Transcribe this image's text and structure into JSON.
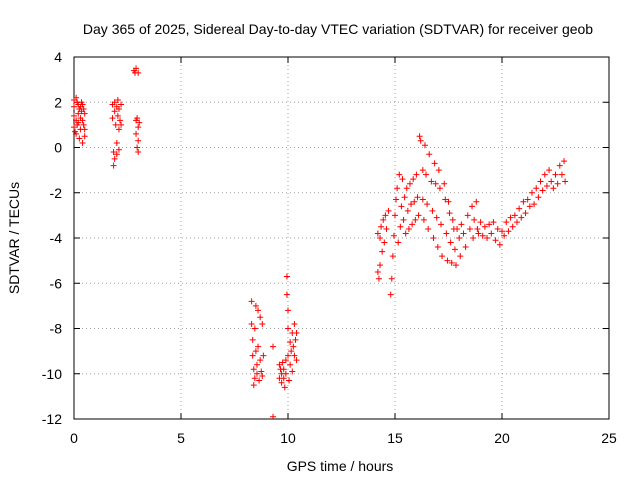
{
  "chart_data": {
    "type": "scatter",
    "title": "Day 365 of 2025, Sidereal Day-to-day VTEC variation (SDTVAR) for receiver geob",
    "xlabel": "GPS time / hours",
    "ylabel": "SDTVAR / TECUs",
    "xlim": [
      0,
      25
    ],
    "ylim": [
      -12,
      4
    ],
    "xticks": [
      "0",
      "5",
      "10",
      "15",
      "20",
      "25"
    ],
    "yticks": [
      "4",
      "2",
      "0",
      "-2",
      "-4",
      "-6",
      "-8",
      "-10",
      "-12"
    ],
    "grid": true,
    "marker": "plus",
    "marker_color": "#ff0000",
    "series": [
      {
        "points": [
          [
            0.0,
            2.1
          ],
          [
            0.0,
            1.8
          ],
          [
            0.0,
            1.4
          ],
          [
            0.0,
            0.9
          ],
          [
            0.05,
            0.7
          ],
          [
            0.1,
            2.2
          ],
          [
            0.1,
            1.2
          ],
          [
            0.1,
            0.6
          ],
          [
            0.15,
            2.0
          ],
          [
            0.15,
            1.0
          ],
          [
            0.2,
            1.9
          ],
          [
            0.2,
            1.5
          ],
          [
            0.2,
            1.1
          ],
          [
            0.25,
            1.7
          ],
          [
            0.25,
            0.4
          ],
          [
            0.3,
            1.8
          ],
          [
            0.3,
            1.3
          ],
          [
            0.3,
            0.8
          ],
          [
            0.35,
            2.0
          ],
          [
            0.35,
            1.6
          ],
          [
            0.4,
            1.9
          ],
          [
            0.4,
            1.2
          ],
          [
            0.4,
            0.2
          ],
          [
            0.45,
            1.7
          ],
          [
            0.45,
            1.0
          ],
          [
            0.5,
            1.5
          ],
          [
            0.5,
            0.8
          ],
          [
            0.5,
            0.5
          ],
          [
            1.8,
            1.9
          ],
          [
            1.8,
            1.3
          ],
          [
            1.85,
            -0.2
          ],
          [
            1.85,
            -0.8
          ],
          [
            1.9,
            2.0
          ],
          [
            1.9,
            1.6
          ],
          [
            1.9,
            -0.5
          ],
          [
            1.95,
            1.0
          ],
          [
            2.0,
            1.8
          ],
          [
            2.0,
            0.2
          ],
          [
            2.0,
            -0.3
          ],
          [
            2.05,
            2.1
          ],
          [
            2.05,
            1.4
          ],
          [
            2.1,
            1.7
          ],
          [
            2.1,
            0.8
          ],
          [
            2.1,
            -0.1
          ],
          [
            2.15,
            1.2
          ],
          [
            2.2,
            1.9
          ],
          [
            2.2,
            1.0
          ],
          [
            2.8,
            3.4
          ],
          [
            2.85,
            3.3
          ],
          [
            2.9,
            3.5
          ],
          [
            2.9,
            1.2
          ],
          [
            2.9,
            0.6
          ],
          [
            2.95,
            0.0
          ],
          [
            2.95,
            1.3
          ],
          [
            3.0,
            3.3
          ],
          [
            3.0,
            0.9
          ],
          [
            3.0,
            0.3
          ],
          [
            3.0,
            -0.2
          ],
          [
            3.05,
            1.1
          ],
          [
            8.3,
            -6.8
          ],
          [
            8.3,
            -7.8
          ],
          [
            8.35,
            -8.5
          ],
          [
            8.35,
            -9.2
          ],
          [
            8.4,
            -9.8
          ],
          [
            8.4,
            -10.5
          ],
          [
            8.45,
            -8.0
          ],
          [
            8.45,
            -10.2
          ],
          [
            8.5,
            -7.0
          ],
          [
            8.5,
            -9.0
          ],
          [
            8.55,
            -9.6
          ],
          [
            8.55,
            -10.0
          ],
          [
            8.6,
            -7.2
          ],
          [
            8.6,
            -8.8
          ],
          [
            8.65,
            -10.3
          ],
          [
            8.7,
            -7.5
          ],
          [
            8.7,
            -9.4
          ],
          [
            8.75,
            -9.9
          ],
          [
            8.8,
            -7.8
          ],
          [
            8.8,
            -10.1
          ],
          [
            8.85,
            -9.2
          ],
          [
            9.3,
            -8.8
          ],
          [
            9.3,
            -11.9
          ],
          [
            9.6,
            -9.6
          ],
          [
            9.6,
            -10.2
          ],
          [
            9.65,
            -9.8
          ],
          [
            9.7,
            -10.0
          ],
          [
            9.7,
            -10.4
          ],
          [
            9.75,
            -9.5
          ],
          [
            9.8,
            -10.2
          ],
          [
            9.8,
            -9.8
          ],
          [
            9.85,
            -10.6
          ],
          [
            9.9,
            -9.4
          ],
          [
            9.9,
            -10.0
          ],
          [
            9.95,
            -5.7
          ],
          [
            9.95,
            -6.5
          ],
          [
            10.0,
            -7.2
          ],
          [
            10.0,
            -8.0
          ],
          [
            10.0,
            -9.2
          ],
          [
            10.05,
            -10.3
          ],
          [
            10.1,
            -8.6
          ],
          [
            10.1,
            -9.6
          ],
          [
            10.15,
            -9.0
          ],
          [
            10.2,
            -8.2
          ],
          [
            10.2,
            -9.9
          ],
          [
            10.25,
            -8.8
          ],
          [
            10.3,
            -9.2
          ],
          [
            10.3,
            -7.8
          ],
          [
            10.35,
            -8.5
          ],
          [
            10.4,
            -8.2
          ],
          [
            10.4,
            -9.4
          ],
          [
            14.2,
            -5.5
          ],
          [
            14.2,
            -3.8
          ],
          [
            14.25,
            -5.8
          ],
          [
            14.3,
            -4.0
          ],
          [
            14.3,
            -5.2
          ],
          [
            14.35,
            -3.5
          ],
          [
            14.4,
            -4.6
          ],
          [
            14.45,
            -3.2
          ],
          [
            14.5,
            -4.2
          ],
          [
            14.55,
            -3.0
          ],
          [
            14.6,
            -3.6
          ],
          [
            14.7,
            -2.8
          ],
          [
            14.8,
            -6.5
          ],
          [
            14.85,
            -5.8
          ],
          [
            14.9,
            -4.8
          ],
          [
            14.95,
            -3.9
          ],
          [
            15.0,
            -3.0
          ],
          [
            15.05,
            -2.3
          ],
          [
            15.1,
            -1.8
          ],
          [
            15.15,
            -4.2
          ],
          [
            15.2,
            -1.2
          ],
          [
            15.25,
            -3.5
          ],
          [
            15.3,
            -2.6
          ],
          [
            15.35,
            -1.4
          ],
          [
            15.4,
            -3.2
          ],
          [
            15.45,
            -2.2
          ],
          [
            15.5,
            -3.8
          ],
          [
            15.55,
            -1.8
          ],
          [
            15.6,
            -2.8
          ],
          [
            15.65,
            -3.6
          ],
          [
            15.7,
            -1.6
          ],
          [
            15.75,
            -2.5
          ],
          [
            15.8,
            -3.4
          ],
          [
            15.85,
            -1.4
          ],
          [
            15.9,
            -2.4
          ],
          [
            15.95,
            -3.2
          ],
          [
            16.0,
            -1.2
          ],
          [
            16.05,
            -2.2
          ],
          [
            16.1,
            -3.0
          ],
          [
            16.15,
            0.5
          ],
          [
            16.2,
            0.3
          ],
          [
            16.3,
            -1.0
          ],
          [
            16.3,
            -2.3
          ],
          [
            16.35,
            -3.2
          ],
          [
            16.4,
            0.1
          ],
          [
            16.45,
            -1.2
          ],
          [
            16.5,
            -2.5
          ],
          [
            16.55,
            -3.6
          ],
          [
            16.6,
            -0.3
          ],
          [
            16.7,
            -1.5
          ],
          [
            16.75,
            -2.8
          ],
          [
            16.8,
            -4.0
          ],
          [
            16.85,
            -0.7
          ],
          [
            16.9,
            -1.6
          ],
          [
            16.95,
            -3.1
          ],
          [
            17.0,
            -4.4
          ],
          [
            17.05,
            -1.0
          ],
          [
            17.1,
            -1.8
          ],
          [
            17.15,
            -3.4
          ],
          [
            17.2,
            -4.8
          ],
          [
            17.3,
            -1.6
          ],
          [
            17.35,
            -2.3
          ],
          [
            17.4,
            -3.8
          ],
          [
            17.45,
            -5.0
          ],
          [
            17.5,
            -2.4
          ],
          [
            17.55,
            -2.9
          ],
          [
            17.6,
            -4.2
          ],
          [
            17.65,
            -5.1
          ],
          [
            17.7,
            -3.2
          ],
          [
            17.75,
            -3.6
          ],
          [
            17.8,
            -4.5
          ],
          [
            17.85,
            -5.2
          ],
          [
            17.9,
            -3.6
          ],
          [
            18.0,
            -4.0
          ],
          [
            18.05,
            -4.8
          ],
          [
            18.1,
            -3.4
          ],
          [
            18.2,
            -3.8
          ],
          [
            18.3,
            -4.4
          ],
          [
            18.4,
            -3.0
          ],
          [
            18.5,
            -3.6
          ],
          [
            18.6,
            -2.6
          ],
          [
            18.65,
            -4.0
          ],
          [
            18.7,
            -3.2
          ],
          [
            18.8,
            -2.4
          ],
          [
            18.85,
            -3.6
          ],
          [
            18.9,
            -3.8
          ],
          [
            19.0,
            -3.3
          ],
          [
            19.1,
            -3.9
          ],
          [
            19.2,
            -3.5
          ],
          [
            19.3,
            -4.0
          ],
          [
            19.4,
            -3.4
          ],
          [
            19.5,
            -3.8
          ],
          [
            19.6,
            -3.3
          ],
          [
            19.7,
            -4.1
          ],
          [
            19.8,
            -3.6
          ],
          [
            19.9,
            -4.3
          ],
          [
            20.0,
            -3.7
          ],
          [
            20.1,
            -3.9
          ],
          [
            20.2,
            -3.3
          ],
          [
            20.3,
            -3.7
          ],
          [
            20.4,
            -3.1
          ],
          [
            20.5,
            -3.5
          ],
          [
            20.6,
            -3.0
          ],
          [
            20.7,
            -3.3
          ],
          [
            20.8,
            -2.7
          ],
          [
            20.9,
            -3.1
          ],
          [
            21.0,
            -2.4
          ],
          [
            21.1,
            -2.9
          ],
          [
            21.2,
            -2.3
          ],
          [
            21.3,
            -2.6
          ],
          [
            21.4,
            -2.0
          ],
          [
            21.5,
            -2.5
          ],
          [
            21.6,
            -1.8
          ],
          [
            21.7,
            -2.2
          ],
          [
            21.8,
            -1.5
          ],
          [
            21.9,
            -1.9
          ],
          [
            22.0,
            -1.2
          ],
          [
            22.1,
            -1.7
          ],
          [
            22.2,
            -1.0
          ],
          [
            22.3,
            -1.5
          ],
          [
            22.4,
            -1.8
          ],
          [
            22.5,
            -1.2
          ],
          [
            22.6,
            -1.6
          ],
          [
            22.7,
            -0.8
          ],
          [
            22.8,
            -1.2
          ],
          [
            22.9,
            -0.6
          ],
          [
            22.95,
            -1.5
          ]
        ]
      }
    ]
  }
}
